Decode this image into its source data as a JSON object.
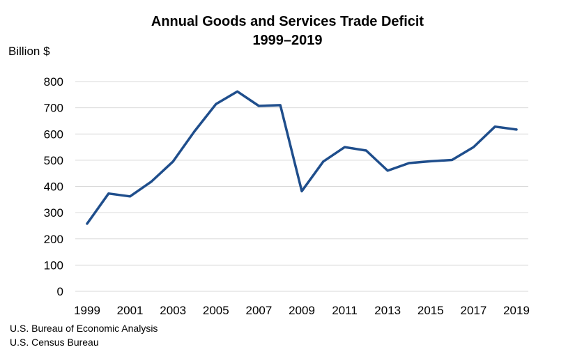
{
  "chart_data": {
    "type": "line",
    "title": "Annual Goods and Services Trade Deficit",
    "subtitle": "1999–2019",
    "ylabel": "Billion $",
    "xlabel": "",
    "x": [
      1999,
      2000,
      2001,
      2002,
      2003,
      2004,
      2005,
      2006,
      2007,
      2008,
      2009,
      2010,
      2011,
      2012,
      2013,
      2014,
      2015,
      2016,
      2017,
      2018,
      2019
    ],
    "series": [
      {
        "values": [
          258,
          373,
          362,
          419,
          495,
          610,
          714,
          762,
          707,
          710,
          382,
          495,
          550,
          537,
          460,
          489,
          496,
          501,
          550,
          628,
          617
        ]
      }
    ],
    "xlim": [
      1999,
      2019
    ],
    "ylim": [
      0,
      800
    ],
    "x_ticks": [
      "1999",
      "2001",
      "2003",
      "2005",
      "2007",
      "2009",
      "2011",
      "2013",
      "2015",
      "2017",
      "2019"
    ],
    "y_ticks": [
      "0",
      "100",
      "200",
      "300",
      "400",
      "500",
      "600",
      "700",
      "800"
    ],
    "grid": "horizontal",
    "legend": "none",
    "line_color": "#1f4e8c",
    "grid_color": "#d9d9d9"
  },
  "source_notes": [
    "U.S. Bureau of Economic Analysis",
    "U.S. Census Bureau"
  ]
}
